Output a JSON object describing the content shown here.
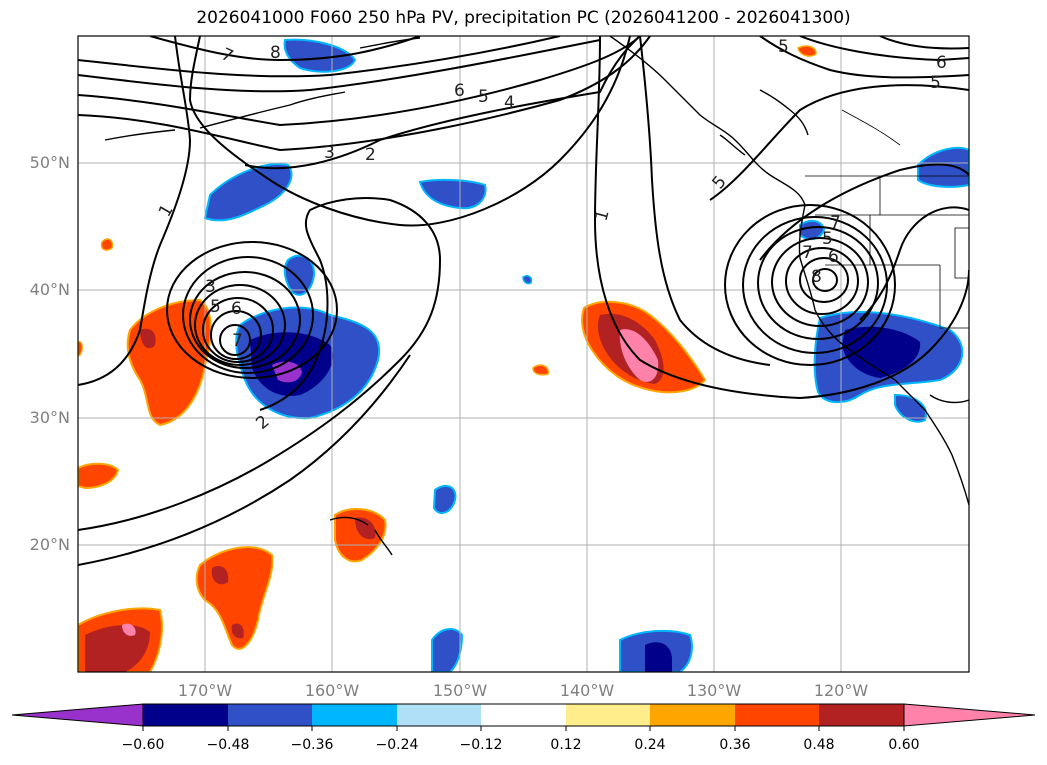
{
  "title": "2026041000 F060 250 hPa PV, precipitation PC (2026041200 - 2026041300)",
  "lat_labels": [
    "50°N",
    "40°N",
    "30°N",
    "20°N"
  ],
  "lon_labels": [
    "170°W",
    "160°W",
    "150°W",
    "140°W",
    "130°W",
    "120°W"
  ],
  "colorbar": {
    "ticks": [
      "−0.60",
      "−0.48",
      "−0.36",
      "−0.24",
      "−0.12",
      "0.12",
      "0.24",
      "0.36",
      "0.48",
      "0.60"
    ],
    "colors": [
      "#9932cc",
      "#00008b",
      "#3050c8",
      "#00b7ff",
      "#b0e0f8",
      "#ffffff",
      "#ffec8b",
      "#ffa500",
      "#ff4500",
      "#b22222",
      "#ff82ab"
    ]
  },
  "contour_labels": [
    "7",
    "8",
    "6",
    "5",
    "4",
    "3",
    "2",
    "1",
    "3",
    "5",
    "6",
    "7",
    "2",
    "1",
    "5",
    "7",
    "5",
    "6",
    "7",
    "8",
    "5",
    "6",
    "5"
  ]
}
